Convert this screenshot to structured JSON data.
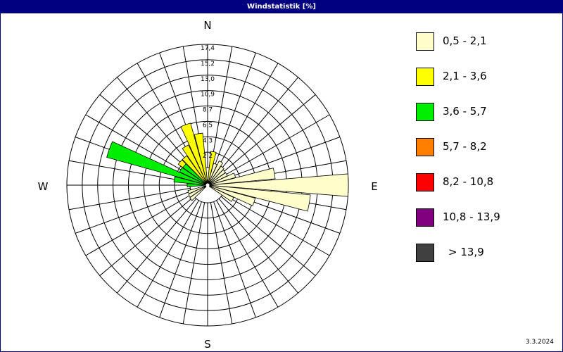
{
  "window": {
    "title": "Windstatistik [%]",
    "date": "3.3.2024"
  },
  "chart_data": {
    "type": "polar-bar",
    "title": "Windstatistik [%]",
    "directions": [
      "N",
      "E",
      "S",
      "W"
    ],
    "ring_labels": [
      "2,2",
      "4,3",
      "6,5",
      "8,7",
      "10,9",
      "13,0",
      "15,2",
      "17,4"
    ],
    "rmax": 17.4,
    "legend": [
      {
        "label": "0,5 - 2,1",
        "color": "#FFFFCC"
      },
      {
        "label": "2,1 - 3,6",
        "color": "#FFFF00"
      },
      {
        "label": "3,6 - 5,7",
        "color": "#00EE00"
      },
      {
        "label": "5,7 - 8,2",
        "color": "#FF8000"
      },
      {
        "label": "8,2 - 10,8",
        "color": "#FF0000"
      },
      {
        "label": "10,8 - 13,9",
        "color": "#800080"
      },
      {
        "label": "> 13,9",
        "color": "#404040"
      }
    ],
    "series": [
      {
        "name": "0,5 - 2,1",
        "bearings": [
          70,
          80,
          90,
          100,
          110,
          120,
          230,
          240,
          250,
          290,
          300,
          310,
          320,
          330,
          340,
          350,
          10,
          20,
          30,
          40,
          50,
          60
        ],
        "values": [
          1.6,
          7.1,
          17.4,
          12.1,
          4.5,
          1.6,
          0.6,
          0.5,
          0.4,
          0.5,
          0.9,
          0.5,
          1.3,
          1.3,
          1.0,
          0.6,
          0.6,
          0.7,
          1.3,
          0.8,
          0.6,
          0.6
        ]
      },
      {
        "name": "2,1 - 3,6",
        "bearings": [
          280,
          290,
          300,
          310,
          320,
          330,
          340,
          350,
          10
        ],
        "values": [
          0.6,
          1.5,
          1.8,
          2.6,
          2.6,
          3.8,
          6.6,
          4.9,
          2.3
        ]
      },
      {
        "name": "3,6 - 5,7",
        "bearings": [
          270,
          280,
          290,
          300,
          310
        ],
        "values": [
          0.4,
          2.3,
          12.3,
          1.9,
          1.8
        ]
      },
      {
        "name": "5,7 - 8,2",
        "bearings": [],
        "values": []
      },
      {
        "name": "8,2 - 10,8",
        "bearings": [],
        "values": []
      },
      {
        "name": "10,8 - 13,9",
        "bearings": [],
        "values": []
      },
      {
        "name": "> 13,9",
        "bearings": [],
        "values": []
      }
    ]
  }
}
